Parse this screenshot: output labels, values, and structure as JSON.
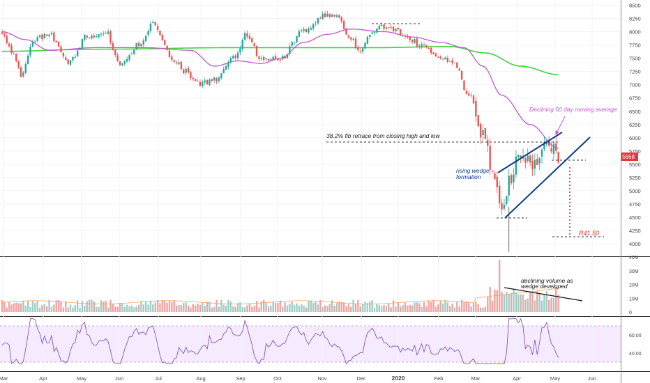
{
  "chart_data": {
    "type": "candlestick",
    "price_axis": {
      "ticks": [
        4000,
        4250,
        4500,
        4750,
        5000,
        5250,
        5500,
        5750,
        6000,
        6250,
        6500,
        6750,
        7000,
        7250,
        7500,
        7750,
        8000,
        8250,
        8500
      ],
      "last_price": 5668,
      "last_price_label": "5668"
    },
    "time_axis": [
      "Mar",
      "Apr",
      "May",
      "Jun",
      "Jul",
      "Aug",
      "Sep",
      "Oct",
      "Nov",
      "Dec",
      "2020",
      "Feb",
      "Mar",
      "Apr",
      "May",
      "Jun"
    ],
    "volume_axis": [
      "40M",
      "30M",
      "20M",
      "10M",
      "0"
    ],
    "rsi_axis": [
      "60.00",
      "40.00"
    ],
    "price_waypoints": [
      {
        "t": 0,
        "v": 8000
      },
      {
        "t": 4,
        "v": 7650
      },
      {
        "t": 8,
        "v": 7200
      },
      {
        "t": 14,
        "v": 7850
      },
      {
        "t": 20,
        "v": 7950
      },
      {
        "t": 28,
        "v": 7400
      },
      {
        "t": 36,
        "v": 7900
      },
      {
        "t": 44,
        "v": 8000
      },
      {
        "t": 50,
        "v": 7350
      },
      {
        "t": 58,
        "v": 7750
      },
      {
        "t": 64,
        "v": 8150
      },
      {
        "t": 72,
        "v": 7500
      },
      {
        "t": 78,
        "v": 7250
      },
      {
        "t": 84,
        "v": 7000
      },
      {
        "t": 90,
        "v": 7100
      },
      {
        "t": 98,
        "v": 7500
      },
      {
        "t": 104,
        "v": 7950
      },
      {
        "t": 110,
        "v": 7450
      },
      {
        "t": 118,
        "v": 7500
      },
      {
        "t": 128,
        "v": 8000
      },
      {
        "t": 136,
        "v": 8300
      },
      {
        "t": 142,
        "v": 8250
      },
      {
        "t": 148,
        "v": 7850
      },
      {
        "t": 152,
        "v": 7650
      },
      {
        "t": 158,
        "v": 8050
      },
      {
        "t": 164,
        "v": 8100
      },
      {
        "t": 170,
        "v": 7950
      },
      {
        "t": 178,
        "v": 7750
      },
      {
        "t": 186,
        "v": 7550
      },
      {
        "t": 192,
        "v": 7400
      },
      {
        "t": 198,
        "v": 6800
      },
      {
        "t": 204,
        "v": 6100
      },
      {
        "t": 208,
        "v": 5300
      },
      {
        "t": 212,
        "v": 4600
      },
      {
        "t": 216,
        "v": 5300
      },
      {
        "t": 220,
        "v": 5700
      },
      {
        "t": 226,
        "v": 5500
      },
      {
        "t": 232,
        "v": 5850
      },
      {
        "t": 236,
        "v": 5668
      }
    ],
    "ma50_waypoints": [
      {
        "t": 0,
        "v": 8000
      },
      {
        "t": 10,
        "v": 7850
      },
      {
        "t": 20,
        "v": 7650
      },
      {
        "t": 40,
        "v": 7700
      },
      {
        "t": 60,
        "v": 7700
      },
      {
        "t": 80,
        "v": 7650
      },
      {
        "t": 90,
        "v": 7350
      },
      {
        "t": 100,
        "v": 7450
      },
      {
        "t": 110,
        "v": 7400
      },
      {
        "t": 118,
        "v": 7500
      },
      {
        "t": 128,
        "v": 7800
      },
      {
        "t": 138,
        "v": 7950
      },
      {
        "t": 148,
        "v": 8050
      },
      {
        "t": 162,
        "v": 8000
      },
      {
        "t": 174,
        "v": 7900
      },
      {
        "t": 186,
        "v": 7800
      },
      {
        "t": 196,
        "v": 7700
      },
      {
        "t": 204,
        "v": 7350
      },
      {
        "t": 212,
        "v": 6800
      },
      {
        "t": 224,
        "v": 6250
      },
      {
        "t": 236,
        "v": 5800
      }
    ],
    "ma200_waypoints": [
      {
        "t": 0,
        "v": 7630
      },
      {
        "t": 40,
        "v": 7670
      },
      {
        "t": 100,
        "v": 7700
      },
      {
        "t": 160,
        "v": 7700
      },
      {
        "t": 190,
        "v": 7720
      },
      {
        "t": 205,
        "v": 7600
      },
      {
        "t": 220,
        "v": 7350
      },
      {
        "t": 236,
        "v": 7190
      }
    ],
    "annotations": {
      "fib": "38.2% fib retrace from closing high and low",
      "wedge_line1": "rising wedge",
      "wedge_line2": "formation",
      "ma_note": "Declining 50 day moving average",
      "target": "R41.50",
      "volume_line1": "declining volume as",
      "volume_line2": "wedge developed"
    },
    "colors": {
      "up": "#26a69a",
      "down": "#ef5350",
      "ma50": "#c353d6",
      "ma200": "#3fd13f",
      "wedge": "#0d3a8c",
      "target": "#d32f2f",
      "rsi_band": "#f0dcff"
    }
  }
}
